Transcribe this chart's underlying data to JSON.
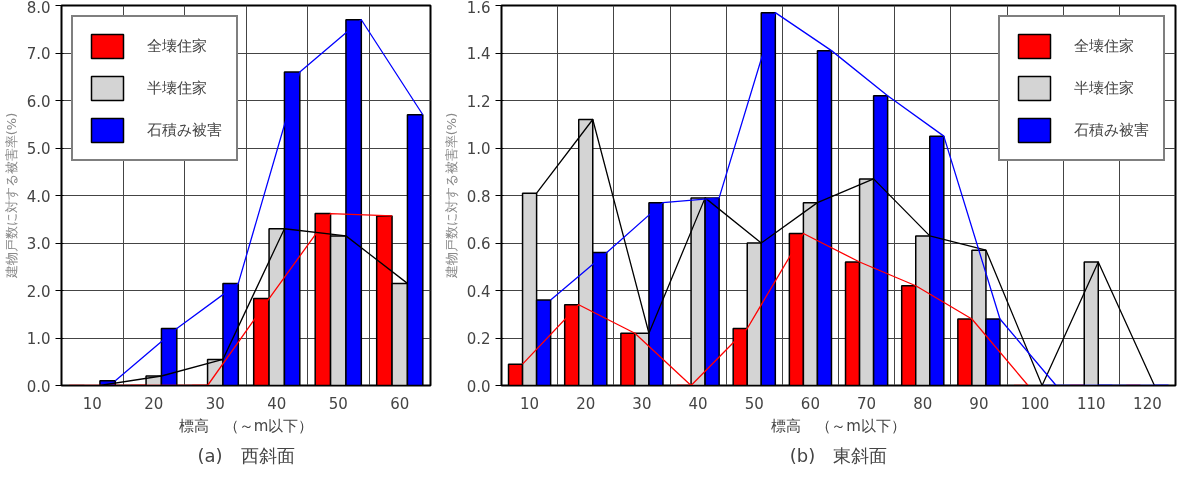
{
  "chart_data": [
    {
      "type": "bar",
      "title": "(a)　西斜面",
      "xlabel": "標高　（～m以下）",
      "ylabel": "建物戸数に対する被害率(%)",
      "categories": [
        "10",
        "20",
        "30",
        "40",
        "50",
        "60"
      ],
      "ylim": [
        0,
        8
      ],
      "yticks": [
        {
          "value": 0,
          "label": "0.0"
        },
        {
          "value": 1,
          "label": "1.0"
        },
        {
          "value": 2,
          "label": "2.0"
        },
        {
          "value": 3,
          "label": "3.0"
        },
        {
          "value": 4,
          "label": "4.0"
        },
        {
          "value": 5,
          "label": "5.0"
        },
        {
          "value": 6,
          "label": "6.0"
        },
        {
          "value": 7,
          "label": "7.0"
        },
        {
          "value": 8,
          "label": "8.0"
        }
      ],
      "grid": true,
      "legend": "top left",
      "series": [
        {
          "name": "全壊住家",
          "color": "#ff0000",
          "values": [
            0,
            0,
            0,
            1.83,
            3.62,
            3.57
          ]
        },
        {
          "name": "半壊住家",
          "color": "#d4d4d4",
          "values": [
            0,
            0.2,
            0.55,
            3.3,
            3.15,
            2.15
          ]
        },
        {
          "name": "石積み被害",
          "color": "#0000ff",
          "values": [
            0.1,
            1.2,
            2.15,
            6.6,
            7.7,
            5.7
          ]
        },
        {
          "type": "line",
          "color": "#ff0000",
          "values": [
            0,
            0,
            0,
            1.83,
            3.62,
            3.57
          ]
        },
        {
          "type": "line",
          "color": "#000000",
          "values": [
            0,
            0.2,
            0.55,
            3.3,
            3.15,
            2.15
          ]
        },
        {
          "type": "line",
          "color": "#0000ff",
          "values": [
            0.1,
            1.2,
            2.15,
            6.6,
            7.7,
            5.7
          ]
        }
      ]
    },
    {
      "type": "bar",
      "title": "(b)　東斜面",
      "xlabel": "標高　（～m以下）",
      "ylabel": "建物戸数に対する被害率(%)",
      "categories": [
        "10",
        "20",
        "30",
        "40",
        "50",
        "60",
        "70",
        "80",
        "90",
        "100",
        "110",
        "120"
      ],
      "ylim": [
        0,
        1.6
      ],
      "yticks": [
        {
          "value": 0,
          "label": "0.0"
        },
        0.2,
        0.4,
        0.6,
        0.8,
        {
          "value": 1,
          "label": "1.0"
        },
        1.2,
        1.4,
        1.6
      ],
      "grid": true,
      "legend": "top right",
      "series": [
        {
          "name": "全壊住家",
          "color": "#ff0000",
          "values": [
            0.09,
            0.34,
            0.22,
            0,
            0.24,
            0.64,
            0.52,
            0.42,
            0.28,
            0,
            0,
            0
          ]
        },
        {
          "name": "半壊住家",
          "color": "#d4d4d4",
          "values": [
            0.81,
            1.12,
            0.22,
            0.79,
            0.6,
            0.77,
            0.87,
            0.63,
            0.57,
            0,
            0.52,
            0
          ]
        },
        {
          "name": "石積み被害",
          "color": "#0000ff",
          "values": [
            0.36,
            0.56,
            0.77,
            0.79,
            1.57,
            1.41,
            1.22,
            1.05,
            0.28,
            0,
            0,
            0
          ]
        },
        {
          "type": "line",
          "color": "#ff0000",
          "values": [
            0.09,
            0.34,
            0.22,
            0,
            0.24,
            0.64,
            0.52,
            0.42,
            0.28,
            0,
            null,
            null
          ]
        },
        {
          "type": "line",
          "color": "#000000",
          "values": [
            0.81,
            1.12,
            0.22,
            0.79,
            0.6,
            0.77,
            0.87,
            0.63,
            0.57,
            0,
            0.52,
            0
          ]
        },
        {
          "type": "line",
          "color": "#0000ff",
          "values": [
            0.36,
            0.56,
            0.77,
            0.79,
            1.57,
            1.41,
            1.22,
            1.05,
            0.28,
            0,
            0,
            0
          ]
        }
      ]
    }
  ]
}
